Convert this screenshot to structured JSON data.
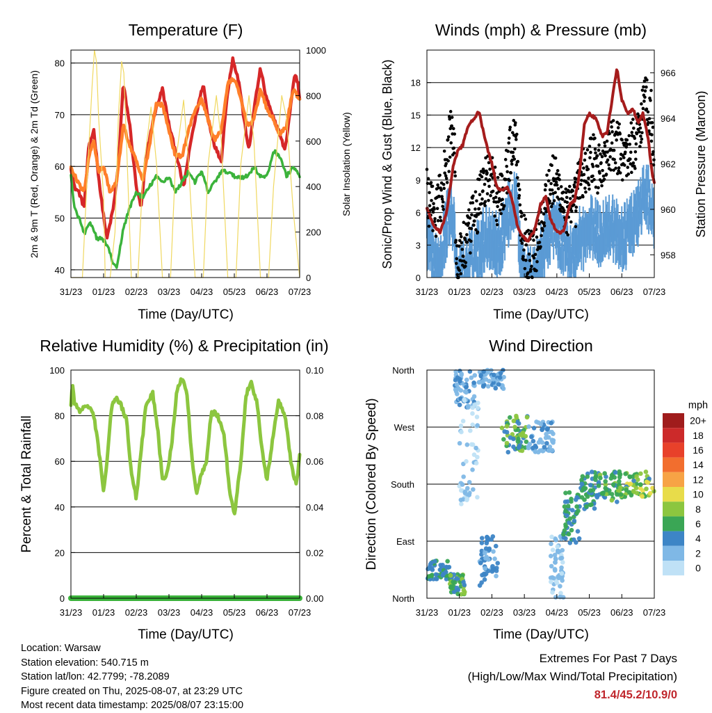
{
  "info": {
    "location": "Location: Warsaw",
    "elevation": "Station elevation: 540.715 m",
    "latlon": "Station lat/lon: 42.7799; -78.2089",
    "created": "Figure created on Thu, 2025-08-07, at 23:29 UTC",
    "recent": "Most recent data timestamp: 2025/08/07 23:15:00"
  },
  "extremes": {
    "title": "Extremes For Past 7 Days",
    "subtitle": "(High/Low/Max Wind/Total Precipitation)",
    "value": "81.4/45.2/10.9/0",
    "value_color": "#c0272d"
  },
  "chart_data": [
    {
      "type": "line",
      "title": "Temperature (F)",
      "xlabel": "Time (Day/UTC)",
      "ylabel": "2m & 9m T (Red, Orange) & 2m Td (Green)",
      "y2label": "Solar Insolation (Yellow)",
      "xticks": [
        "31/23",
        "01/23",
        "02/23",
        "03/23",
        "04/23",
        "05/23",
        "06/23",
        "07/23"
      ],
      "x_range_days": [
        0,
        7
      ],
      "ylim": [
        38.5,
        82.5
      ],
      "yticks": [
        40,
        50,
        60,
        70,
        80
      ],
      "y2lim": [
        0,
        1000
      ],
      "y2ticks": [
        0,
        200,
        400,
        600,
        800,
        1000
      ],
      "grid": true,
      "series": [
        {
          "color": "#d62728",
          "x": [
            0,
            0.1,
            0.25,
            0.4,
            0.55,
            0.7,
            0.9,
            1.1,
            1.3,
            1.45,
            1.6,
            1.8,
            2.0,
            2.15,
            2.3,
            2.55,
            2.8,
            3.0,
            3.2,
            3.45,
            3.7,
            3.9,
            4.05,
            4.2,
            4.4,
            4.6,
            4.75,
            4.95,
            5.15,
            5.3,
            5.45,
            5.6,
            5.8,
            5.95,
            6.15,
            6.35,
            6.55,
            6.75,
            6.85,
            6.95,
            7.0
          ],
          "y": [
            60,
            56,
            55,
            52,
            64,
            67,
            55,
            46,
            52,
            60,
            76,
            68,
            56,
            52,
            62,
            70,
            75,
            68,
            63,
            56,
            66,
            72,
            76,
            69,
            64,
            61,
            72,
            81,
            76,
            69,
            63,
            71,
            79,
            74,
            70,
            67,
            63,
            73,
            78,
            76,
            73
          ]
        },
        {
          "color": "#ff7f2a",
          "x": [
            0,
            0.2,
            0.4,
            0.55,
            0.7,
            0.85,
            1.0,
            1.2,
            1.4,
            1.6,
            1.8,
            2.0,
            2.2,
            2.4,
            2.6,
            2.8,
            3.0,
            3.2,
            3.4,
            3.6,
            3.8,
            4.0,
            4.2,
            4.4,
            4.6,
            4.8,
            5.0,
            5.2,
            5.4,
            5.6,
            5.8,
            6.0,
            6.2,
            6.4,
            6.6,
            6.8,
            7.0
          ],
          "y": [
            60,
            57,
            55,
            62,
            65,
            59,
            60,
            55,
            57,
            68,
            64,
            61,
            57,
            64,
            72,
            72,
            67,
            62,
            62,
            67,
            71,
            73,
            69,
            65,
            67,
            76,
            77,
            73,
            68,
            69,
            75,
            71,
            69,
            66,
            68,
            75,
            73
          ]
        },
        {
          "color": "#3bb33b",
          "x": [
            0,
            0.1,
            0.25,
            0.4,
            0.6,
            0.8,
            0.95,
            1.1,
            1.25,
            1.4,
            1.6,
            1.8,
            2.0,
            2.2,
            2.4,
            2.6,
            2.8,
            3.0,
            3.2,
            3.4,
            3.6,
            3.8,
            4.0,
            4.2,
            4.4,
            4.6,
            4.8,
            5.0,
            5.2,
            5.4,
            5.6,
            5.8,
            6.0,
            6.2,
            6.4,
            6.6,
            6.8,
            7.0
          ],
          "y": [
            58,
            52,
            50,
            47,
            49,
            46,
            46,
            45,
            42,
            40,
            48,
            52,
            55,
            54,
            56,
            58,
            57,
            58,
            55,
            57,
            59,
            57,
            59,
            55,
            57,
            59,
            59,
            58,
            58,
            58,
            60,
            58,
            58,
            63,
            62,
            58,
            60,
            58
          ]
        },
        {
          "color": "#f0d860",
          "axis": "y2",
          "x": [
            0,
            0.2,
            0.35,
            0.5,
            0.65,
            0.72,
            0.78,
            0.85,
            1.0,
            1.05,
            1.2,
            1.35,
            1.45,
            1.55,
            1.62,
            1.7,
            1.85,
            2.05,
            2.2,
            2.45,
            2.62,
            2.8,
            3.05,
            3.2,
            3.45,
            3.6,
            3.8,
            4.05,
            4.2,
            4.45,
            4.6,
            4.8,
            5.05,
            5.2,
            5.45,
            5.6,
            5.8,
            6.05,
            6.2,
            6.45,
            6.6,
            6.8,
            7.0
          ],
          "y": [
            0,
            0,
            0,
            450,
            850,
            1000,
            950,
            700,
            350,
            0,
            0,
            200,
            700,
            950,
            900,
            600,
            0,
            0,
            450,
            750,
            500,
            0,
            0,
            500,
            780,
            500,
            0,
            0,
            500,
            800,
            600,
            0,
            0,
            500,
            800,
            600,
            0,
            0,
            400,
            800,
            700,
            300,
            0
          ]
        }
      ]
    },
    {
      "type": "line",
      "title": "Winds (mph) & Pressure (mb)",
      "xlabel": "Time (Day/UTC)",
      "ylabel": "Sonic/Prop Wind & Gust (Blue, Black)",
      "y2label": "Station Pressure (Maroon)",
      "xticks": [
        "31/23",
        "01/23",
        "02/23",
        "03/23",
        "04/23",
        "05/23",
        "06/23",
        "07/23"
      ],
      "x_range_days": [
        0,
        7
      ],
      "ylim": [
        0,
        21
      ],
      "yticks": [
        0,
        3,
        6,
        9,
        12,
        15,
        18
      ],
      "y2lim": [
        957.0,
        967.0
      ],
      "y2ticks": [
        958,
        960,
        962,
        964,
        966
      ],
      "grid": true,
      "series": [
        {
          "color": "#5b9bd5",
          "x": [
            0,
            0.15,
            0.3,
            0.45,
            0.6,
            0.75,
            0.85,
            0.9,
            1.0,
            1.2,
            1.4,
            1.6,
            1.8,
            2.0,
            2.2,
            2.4,
            2.6,
            2.75,
            2.9,
            3.1,
            3.3,
            3.5,
            3.7,
            3.9,
            4.1,
            4.3,
            4.5,
            4.7,
            4.9,
            5.1,
            5.3,
            5.5,
            5.7,
            5.9,
            6.1,
            6.3,
            6.5,
            6.7,
            6.9,
            7.0
          ],
          "y": [
            5,
            3,
            2,
            4,
            6,
            8,
            5,
            1,
            1,
            2,
            3,
            4,
            5,
            5,
            4,
            6,
            8,
            8,
            3,
            1,
            1,
            3,
            5,
            6,
            5,
            4,
            3,
            5,
            5,
            6,
            5,
            6,
            6,
            5,
            5,
            6,
            7,
            9,
            8,
            6
          ]
        },
        {
          "color": "#000000",
          "x": [
            0,
            0.15,
            0.3,
            0.45,
            0.6,
            0.75,
            0.85,
            0.9,
            1.0,
            1.2,
            1.4,
            1.6,
            1.8,
            2.0,
            2.2,
            2.4,
            2.6,
            2.75,
            2.9,
            3.1,
            3.3,
            3.5,
            3.7,
            3.9,
            4.1,
            4.3,
            4.5,
            4.7,
            4.9,
            5.1,
            5.3,
            5.5,
            5.7,
            5.9,
            6.1,
            6.3,
            6.5,
            6.7,
            6.9,
            7.0
          ],
          "y": [
            8,
            6,
            6,
            8,
            10,
            14,
            13,
            1,
            2,
            3,
            5,
            7,
            9,
            9,
            7,
            9,
            12,
            13,
            5,
            2,
            2,
            5,
            8,
            9,
            8,
            6,
            6,
            9,
            10,
            11,
            10,
            11,
            12,
            12,
            11,
            12,
            13,
            17,
            15,
            12
          ]
        },
        {
          "color": "#a51c1c",
          "axis": "y2",
          "x": [
            0,
            0.2,
            0.4,
            0.6,
            0.8,
            0.95,
            1.1,
            1.25,
            1.45,
            1.6,
            1.8,
            2.0,
            2.15,
            2.3,
            2.45,
            2.6,
            2.8,
            2.95,
            3.1,
            3.3,
            3.5,
            3.65,
            3.8,
            4.0,
            4.2,
            4.4,
            4.55,
            4.7,
            4.85,
            5.0,
            5.2,
            5.4,
            5.55,
            5.7,
            5.85,
            6.0,
            6.2,
            6.35,
            6.5,
            6.65,
            6.8,
            6.95,
            7.0
          ],
          "y": [
            960.0,
            959.3,
            959.0,
            959.8,
            961.8,
            962.6,
            962.8,
            963.6,
            964.0,
            964.3,
            963.0,
            962.0,
            961.0,
            960.8,
            961.0,
            960.6,
            959.2,
            958.8,
            958.6,
            959.0,
            960.2,
            960.6,
            959.6,
            959.0,
            959.0,
            960.2,
            960.4,
            961.6,
            963.8,
            964.2,
            964.0,
            963.2,
            963.4,
            964.8,
            966.2,
            964.8,
            964.2,
            964.4,
            963.8,
            964.2,
            963.2,
            961.4,
            961.2
          ]
        }
      ]
    },
    {
      "type": "line",
      "title": "Relative Humidity (%) & Precipitation (in)",
      "xlabel": "Time (Day/UTC)",
      "ylabel": "Percent & Total Rainfall",
      "xticks": [
        "31/23",
        "01/23",
        "02/23",
        "03/23",
        "04/23",
        "05/23",
        "06/23",
        "07/23"
      ],
      "x_range_days": [
        0,
        7
      ],
      "ylim": [
        0,
        100
      ],
      "yticks": [
        0,
        20,
        40,
        60,
        80,
        100
      ],
      "y2lim": [
        0,
        0.1
      ],
      "y2ticks": [
        0.0,
        0.02,
        0.04,
        0.06,
        0.08,
        0.1
      ],
      "grid": true,
      "series": [
        {
          "color": "#8cc63f",
          "x": [
            0,
            0.05,
            0.1,
            0.3,
            0.5,
            0.7,
            0.85,
            1.0,
            1.1,
            1.25,
            1.4,
            1.55,
            1.7,
            1.85,
            2.0,
            2.15,
            2.3,
            2.5,
            2.65,
            2.8,
            2.95,
            3.1,
            3.25,
            3.4,
            3.55,
            3.7,
            3.85,
            4.0,
            4.15,
            4.3,
            4.5,
            4.7,
            4.85,
            5.0,
            5.2,
            5.35,
            5.5,
            5.7,
            5.85,
            6.0,
            6.2,
            6.35,
            6.55,
            6.75,
            6.9,
            7.0
          ],
          "y": [
            85,
            95,
            85,
            82,
            85,
            80,
            65,
            47,
            60,
            85,
            88,
            84,
            78,
            55,
            44,
            65,
            85,
            90,
            75,
            52,
            55,
            70,
            92,
            96,
            90,
            62,
            46,
            55,
            60,
            82,
            80,
            70,
            48,
            36,
            60,
            88,
            95,
            85,
            65,
            52,
            72,
            87,
            80,
            58,
            50,
            62
          ]
        },
        {
          "color": "#3bb33b",
          "axis": "y2",
          "x": [
            0,
            7
          ],
          "y": [
            0,
            0
          ]
        }
      ]
    },
    {
      "type": "scatter",
      "title": "Wind Direction",
      "xlabel": "Time (Day/UTC)",
      "ylabel": "Direction (Colored By Speed)",
      "xticks": [
        "31/23",
        "01/23",
        "02/23",
        "03/23",
        "04/23",
        "05/23",
        "06/23",
        "07/23"
      ],
      "x_range_days": [
        0,
        7
      ],
      "yticks": [
        "North",
        "East",
        "South",
        "West",
        "North"
      ],
      "ylim_degrees": [
        0,
        360
      ],
      "grid": true,
      "colorbar": {
        "title": "mph",
        "labels": [
          "20+",
          "18",
          "16",
          "14",
          "12",
          "10",
          "8",
          "6",
          "4",
          "2",
          "0"
        ],
        "colors": [
          "#a01c1c",
          "#cc2a2a",
          "#e8412a",
          "#f26e2e",
          "#f7a345",
          "#e8dc4a",
          "#8cc63f",
          "#3aa655",
          "#3d85c6",
          "#7fb8e6",
          "#bfe1f6"
        ]
      },
      "segments": [
        {
          "x": [
            0.0,
            0.7
          ],
          "dir": [
            30,
            60
          ],
          "speed": [
            3,
            6
          ]
        },
        {
          "x": [
            0.7,
            1.2
          ],
          "dir": [
            5,
            40
          ],
          "speed": [
            4,
            8
          ]
        },
        {
          "x": [
            0.85,
            1.5
          ],
          "dir": [
            300,
            360
          ],
          "speed": [
            1,
            4
          ]
        },
        {
          "x": [
            1.0,
            1.6
          ],
          "dir": [
            140,
            320
          ],
          "speed": [
            0,
            2
          ]
        },
        {
          "x": [
            1.6,
            2.4
          ],
          "dir": [
            330,
            360
          ],
          "speed": [
            1,
            4
          ]
        },
        {
          "x": [
            1.6,
            2.2
          ],
          "dir": [
            20,
            100
          ],
          "speed": [
            2,
            5
          ]
        },
        {
          "x": [
            2.3,
            3.1
          ],
          "dir": [
            230,
            290
          ],
          "speed": [
            3,
            9
          ]
        },
        {
          "x": [
            3.1,
            3.9
          ],
          "dir": [
            230,
            280
          ],
          "speed": [
            1,
            4
          ]
        },
        {
          "x": [
            3.8,
            4.2
          ],
          "dir": [
            0,
            100
          ],
          "speed": [
            0,
            3
          ]
        },
        {
          "x": [
            4.2,
            4.7
          ],
          "dir": [
            80,
            170
          ],
          "speed": [
            3,
            7
          ]
        },
        {
          "x": [
            4.7,
            5.3
          ],
          "dir": [
            140,
            200
          ],
          "speed": [
            3,
            7
          ]
        },
        {
          "x": [
            5.3,
            6.1
          ],
          "dir": [
            150,
            200
          ],
          "speed": [
            4,
            8
          ]
        },
        {
          "x": [
            6.1,
            7.0
          ],
          "dir": [
            160,
            200
          ],
          "speed": [
            4,
            10
          ]
        }
      ]
    }
  ]
}
